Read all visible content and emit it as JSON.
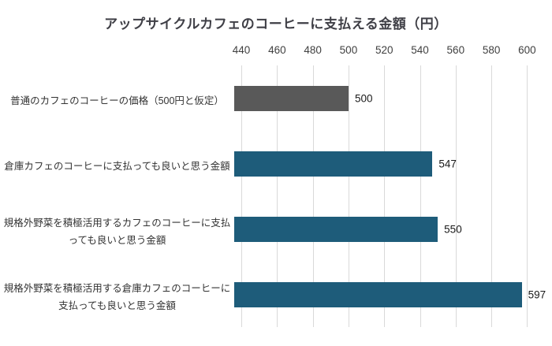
{
  "chart_data": {
    "type": "bar",
    "orientation": "horizontal",
    "title": "アップサイクルカフェのコーヒーに支払える金額（円）",
    "categories": [
      "普通のカフェのコーヒーの価格（500円と仮定）",
      "倉庫カフェのコーヒーに支払っても良いと思う金額",
      "規格外野菜を積極活用するカフェのコーヒーに支払っても良いと思う金額",
      "規格外野菜を積極活用する倉庫カフェのコーヒーに支払っても良いと思う金額"
    ],
    "values": [
      500,
      547,
      550,
      597
    ],
    "value_labels": [
      "500",
      "547",
      "550",
      "597"
    ],
    "bar_colors": [
      "#595959",
      "#1e5c7a",
      "#1e5c7a",
      "#1e5c7a"
    ],
    "x_ticks": [
      440,
      460,
      480,
      500,
      520,
      540,
      560,
      580,
      600
    ],
    "xlim": [
      436,
      606
    ],
    "grid": true,
    "legend": "none",
    "xlabel": "",
    "ylabel": ""
  },
  "colors": {
    "gridline": "#d9d9d9",
    "title_text": "#3f3f46",
    "axis_text": "#404040",
    "label_text": "#333333",
    "value_text": "#1a1a1a",
    "background": "#ffffff"
  }
}
